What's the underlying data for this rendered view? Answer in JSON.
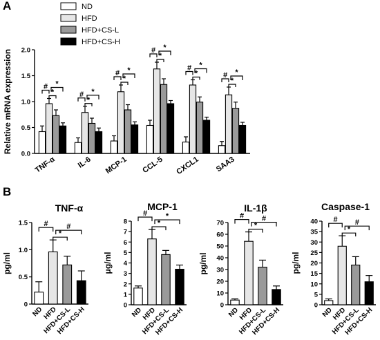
{
  "panels": {
    "a": "A",
    "b": "B"
  },
  "legend": {
    "entries": [
      {
        "label": "ND",
        "color": "#ffffff"
      },
      {
        "label": "HFD",
        "color": "#e6e6e6"
      },
      {
        "label": "HFD+CS-L",
        "color": "#9a9a9a"
      },
      {
        "label": "HFD+CS-H",
        "color": "#000000"
      }
    ]
  },
  "chart_data": [
    {
      "type": "bar",
      "panel": "A",
      "ylabel": "Relative mRNA expression",
      "ylim": [
        0,
        2.0
      ],
      "yticks": [
        "0.0",
        "0.5",
        "1.0",
        "1.5",
        "2.0"
      ],
      "ytick_values": [
        0,
        0.5,
        1.0,
        1.5,
        2.0
      ],
      "categories": [
        "TNF-α",
        "IL-6",
        "MCP-1",
        "CCL-5",
        "CXCL1",
        "SAA3"
      ],
      "series": [
        {
          "name": "ND",
          "color": "#ffffff",
          "values": [
            0.42,
            0.21,
            0.24,
            0.54,
            0.22,
            0.15
          ],
          "errors": [
            0.11,
            0.09,
            0.1,
            0.1,
            0.1,
            0.08
          ]
        },
        {
          "name": "HFD",
          "color": "#e6e6e6",
          "values": [
            0.96,
            0.79,
            1.19,
            1.63,
            1.32,
            1.13
          ],
          "errors": [
            0.1,
            0.12,
            0.13,
            0.13,
            0.1,
            0.15
          ]
        },
        {
          "name": "HFD+CS-L",
          "color": "#9a9a9a",
          "values": [
            0.73,
            0.58,
            0.84,
            1.33,
            0.99,
            0.87
          ],
          "errors": [
            0.11,
            0.1,
            0.1,
            0.11,
            0.1,
            0.12
          ]
        },
        {
          "name": "HFD+CS-H",
          "color": "#000000",
          "values": [
            0.53,
            0.42,
            0.55,
            0.96,
            0.64,
            0.54
          ],
          "errors": [
            0.06,
            0.07,
            0.06,
            0.06,
            0.06,
            0.06
          ]
        }
      ],
      "annotations": [
        "#",
        "*",
        "*"
      ]
    },
    {
      "type": "bar",
      "panel": "B",
      "title": "TNF-α",
      "ylabel": "pg/ml",
      "ylim": [
        0,
        1.5
      ],
      "yticks": [
        "0",
        "0.5",
        "1.0",
        "1.5"
      ],
      "ytick_values": [
        0,
        0.5,
        1.0,
        1.5
      ],
      "categories": [
        "ND",
        "HFD",
        "HFD+CS-L",
        "HFD+CS-H"
      ],
      "colors": [
        "#ffffff",
        "#e6e6e6",
        "#9a9a9a",
        "#000000"
      ],
      "values": [
        0.22,
        0.96,
        0.72,
        0.43
      ],
      "errors": [
        0.19,
        0.22,
        0.16,
        0.18
      ],
      "annotations": [
        "#",
        "*",
        "#"
      ]
    },
    {
      "type": "bar",
      "panel": "B",
      "title": "MCP-1",
      "ylabel": "μg/ml",
      "ylim": [
        0,
        8
      ],
      "yticks": [
        "0",
        "1",
        "2",
        "3",
        "4",
        "5",
        "6",
        "7",
        "8"
      ],
      "ytick_values": [
        0,
        1,
        2,
        3,
        4,
        5,
        6,
        7,
        8
      ],
      "categories": [
        "ND",
        "HFD",
        "HFD+CS-L",
        "HFD+CS-H"
      ],
      "colors": [
        "#ffffff",
        "#e6e6e6",
        "#9a9a9a",
        "#000000"
      ],
      "values": [
        1.6,
        6.3,
        4.8,
        3.4
      ],
      "errors": [
        0.2,
        0.9,
        0.4,
        0.4
      ],
      "annotations": [
        "#",
        "*",
        "*"
      ]
    },
    {
      "type": "bar",
      "panel": "B",
      "title": "IL-1β",
      "ylabel": "pg/ml",
      "ylim": [
        0,
        70
      ],
      "yticks": [
        "0",
        "10",
        "20",
        "30",
        "40",
        "50",
        "60",
        "70"
      ],
      "ytick_values": [
        0,
        10,
        20,
        30,
        40,
        50,
        60,
        70
      ],
      "categories": [
        "ND",
        "HFD",
        "HFD+CS-L",
        "HFD+CS-H"
      ],
      "colors": [
        "#ffffff",
        "#e6e6e6",
        "#9a9a9a",
        "#000000"
      ],
      "values": [
        4,
        54,
        32,
        13
      ],
      "errors": [
        1,
        8,
        6,
        3
      ],
      "annotations": [
        "#",
        "*",
        "#"
      ]
    },
    {
      "type": "bar",
      "panel": "B",
      "title": "Caspase-1",
      "ylabel": "pg/ml",
      "ylim": [
        0,
        40
      ],
      "yticks": [
        "0",
        "5",
        "10",
        "15",
        "20",
        "25",
        "30",
        "35",
        "40"
      ],
      "ytick_values": [
        0,
        5,
        10,
        15,
        20,
        25,
        30,
        35,
        40
      ],
      "categories": [
        "ND",
        "HFD",
        "HFD+CS-L",
        "HFD+CS-H"
      ],
      "colors": [
        "#ffffff",
        "#e6e6e6",
        "#9a9a9a",
        "#000000"
      ],
      "values": [
        2,
        28,
        19,
        11
      ],
      "errors": [
        0.8,
        5,
        4,
        3
      ],
      "annotations": [
        "#",
        "*",
        "#"
      ]
    }
  ]
}
